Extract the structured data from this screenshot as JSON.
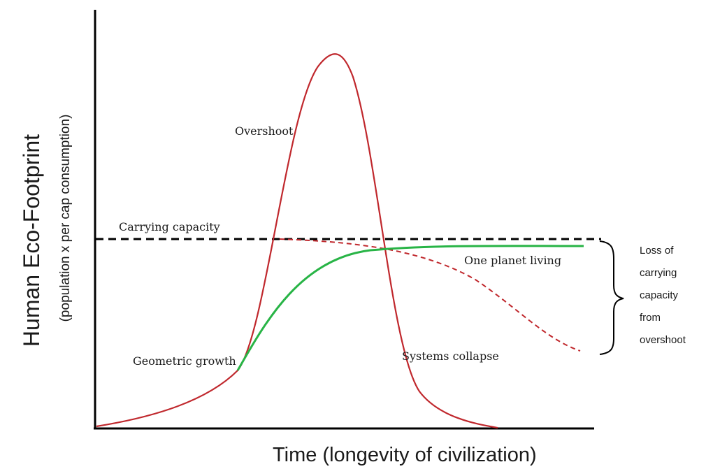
{
  "diagram": {
    "y_axis_title": "Human  Eco-Footprint",
    "y_axis_subtitle": "(population  x  per cap consumption)",
    "x_axis_title": "Time (longevity of civilization)",
    "labels": {
      "overshoot": "Overshoot",
      "carrying_capacity": "Carrying capacity",
      "one_planet_living": "One planet living",
      "geometric_growth": "Geometric  growth",
      "systems_collapse": "Systems collapse",
      "loss_note": [
        "Loss of",
        "carrying",
        "capacity",
        "from",
        "overshoot"
      ]
    },
    "colors": {
      "axes": "#000000",
      "overshoot_curve": "#c0282d",
      "carrying_decline": "#c0282d",
      "one_planet_curve": "#28b446",
      "carrying_line": "#000000",
      "brace": "#000000"
    }
  }
}
